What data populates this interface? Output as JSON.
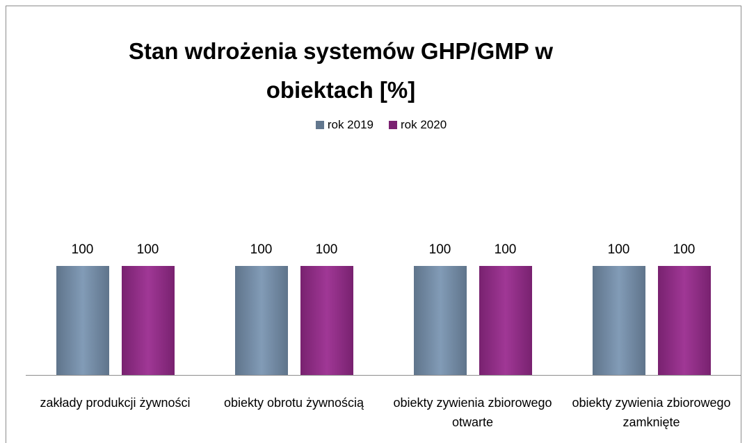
{
  "chart_data": {
    "type": "bar",
    "title": "Stan wdrożenia systemów GHP/GMP w obiektach [%]",
    "categories": [
      "zakłady produkcji żywności",
      "obiekty obrotu żywnością",
      "obiekty zywienia zbiorowego otwarte",
      "obiekty zywienia zbiorowego zamknięte"
    ],
    "series": [
      {
        "name": "rok 2019",
        "color": "#7a95b2",
        "values": [
          100,
          100,
          100,
          100
        ]
      },
      {
        "name": "rok 2020",
        "color": "#9a2b8f",
        "values": [
          100,
          100,
          100,
          100
        ]
      }
    ],
    "legend": "top"
  }
}
